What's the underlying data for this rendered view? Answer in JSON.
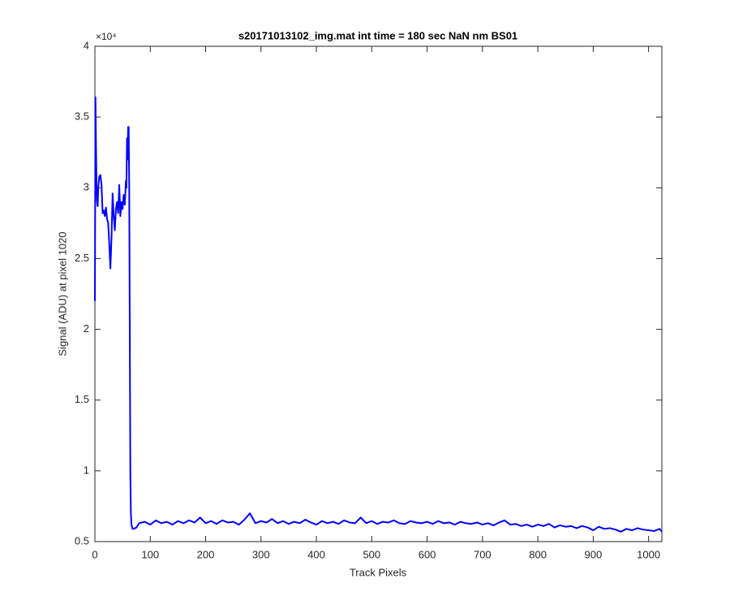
{
  "chart_data": {
    "type": "line",
    "title": "s20171013102_img.mat int time = 180 sec  NaN nm BS01",
    "x_label": "Track Pixels",
    "y_label": "Signal (ADU) at pixel 1020",
    "y_multiplier": "×10⁴",
    "xlim": [
      0,
      1024
    ],
    "xticks": [
      0,
      100,
      200,
      300,
      400,
      500,
      600,
      700,
      800,
      900,
      1000
    ],
    "ylim": [
      5000,
      40000
    ],
    "yticks": [
      {
        "value": 5000,
        "label": "0.5"
      },
      {
        "value": 10000,
        "label": "1"
      },
      {
        "value": 15000,
        "label": "1.5"
      },
      {
        "value": 20000,
        "label": "2"
      },
      {
        "value": 25000,
        "label": "2.5"
      },
      {
        "value": 30000,
        "label": "3"
      },
      {
        "value": 35000,
        "label": "3.5"
      },
      {
        "value": 40000,
        "label": "4"
      }
    ],
    "grid": false,
    "series": [
      {
        "color": "#0000ff",
        "x": [
          0,
          1,
          2,
          3,
          4,
          5,
          6,
          8,
          10,
          12,
          14,
          16,
          18,
          20,
          22,
          24,
          26,
          28,
          30,
          32,
          34,
          36,
          38,
          40,
          42,
          44,
          46,
          48,
          50,
          52,
          54,
          56,
          57,
          58,
          59,
          60,
          61,
          62,
          63,
          64,
          65,
          66,
          68,
          70,
          75,
          80,
          90,
          100,
          110,
          120,
          130,
          140,
          150,
          160,
          170,
          180,
          190,
          200,
          210,
          220,
          230,
          240,
          250,
          260,
          270,
          280,
          290,
          300,
          310,
          320,
          330,
          340,
          350,
          360,
          370,
          380,
          390,
          400,
          410,
          420,
          430,
          440,
          450,
          460,
          470,
          480,
          490,
          500,
          510,
          520,
          530,
          540,
          550,
          560,
          570,
          580,
          590,
          600,
          610,
          620,
          630,
          640,
          650,
          660,
          670,
          680,
          690,
          700,
          710,
          720,
          730,
          740,
          750,
          760,
          770,
          780,
          790,
          800,
          810,
          820,
          830,
          840,
          850,
          860,
          870,
          880,
          890,
          900,
          910,
          920,
          930,
          940,
          950,
          960,
          970,
          980,
          990,
          1000,
          1010,
          1020,
          1024
        ],
        "values": [
          22000,
          36400,
          33000,
          30000,
          29000,
          28700,
          30000,
          30800,
          30900,
          30200,
          28200,
          28400,
          28000,
          28600,
          27800,
          27500,
          26000,
          24300,
          26500,
          29600,
          28000,
          27000,
          28500,
          29000,
          28200,
          30200,
          28000,
          29000,
          28500,
          29500,
          28800,
          30500,
          30000,
          33500,
          32000,
          34300,
          34300,
          30000,
          20000,
          10000,
          7000,
          6200,
          5900,
          5900,
          6000,
          6300,
          6400,
          6200,
          6500,
          6300,
          6400,
          6200,
          6450,
          6300,
          6500,
          6350,
          6700,
          6300,
          6450,
          6250,
          6500,
          6350,
          6400,
          6200,
          6550,
          7000,
          6300,
          6450,
          6350,
          6600,
          6300,
          6450,
          6250,
          6400,
          6300,
          6550,
          6350,
          6200,
          6450,
          6300,
          6400,
          6250,
          6500,
          6350,
          6300,
          6700,
          6300,
          6450,
          6250,
          6400,
          6350,
          6500,
          6300,
          6250,
          6450,
          6350,
          6300,
          6400,
          6250,
          6450,
          6300,
          6350,
          6200,
          6400,
          6300,
          6250,
          6350,
          6200,
          6300,
          6150,
          6350,
          6500,
          6200,
          6250,
          6100,
          6200,
          6050,
          6200,
          6100,
          6250,
          6000,
          6150,
          6050,
          6100,
          5950,
          6100,
          6000,
          5800,
          6050,
          5900,
          5950,
          5850,
          5700,
          5900,
          5800,
          5950,
          5850,
          5800,
          5750,
          5900,
          5700
        ]
      }
    ]
  }
}
